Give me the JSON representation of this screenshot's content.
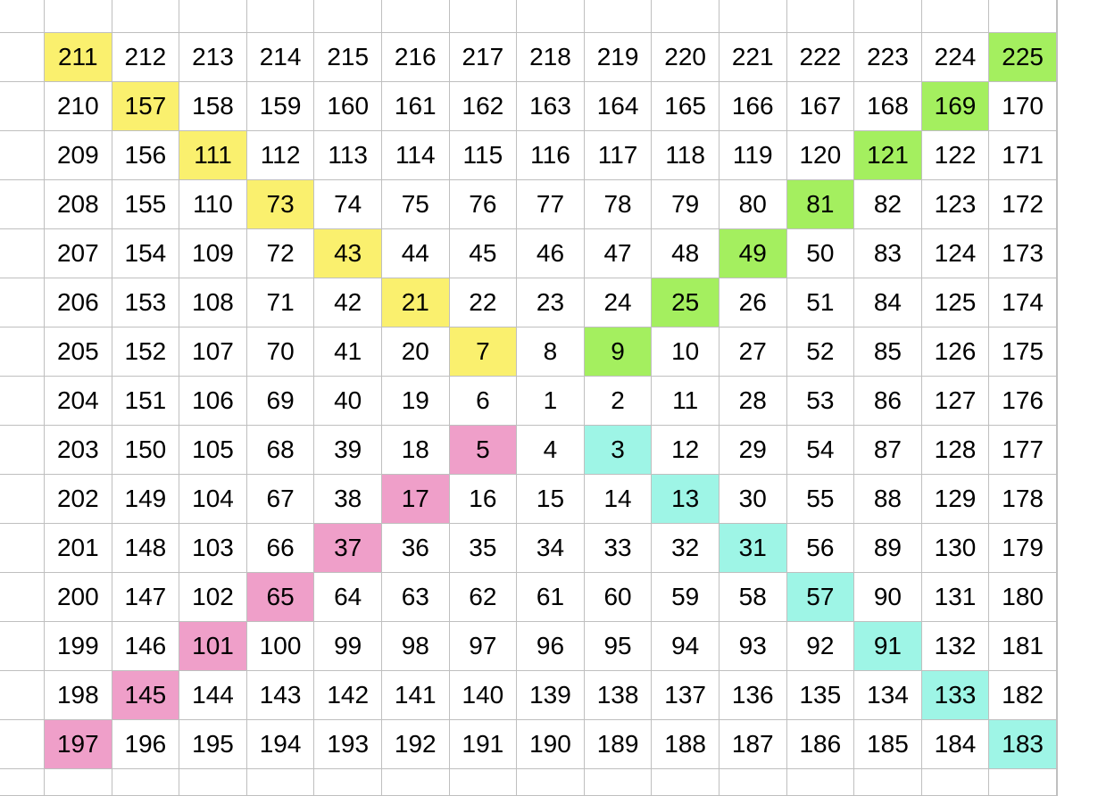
{
  "colors": {
    "yellow": "#faf06e",
    "green": "#a4ef5f",
    "pink": "#ef9fc9",
    "cyan": "#9ef5e6",
    "gridline": "#bfbfbf"
  },
  "grid": {
    "rows": [
      [
        211,
        212,
        213,
        214,
        215,
        216,
        217,
        218,
        219,
        220,
        221,
        222,
        223,
        224,
        225
      ],
      [
        210,
        157,
        158,
        159,
        160,
        161,
        162,
        163,
        164,
        165,
        166,
        167,
        168,
        169,
        170
      ],
      [
        209,
        156,
        111,
        112,
        113,
        114,
        115,
        116,
        117,
        118,
        119,
        120,
        121,
        122,
        171
      ],
      [
        208,
        155,
        110,
        73,
        74,
        75,
        76,
        77,
        78,
        79,
        80,
        81,
        82,
        123,
        172
      ],
      [
        207,
        154,
        109,
        72,
        43,
        44,
        45,
        46,
        47,
        48,
        49,
        50,
        83,
        124,
        173
      ],
      [
        206,
        153,
        108,
        71,
        42,
        21,
        22,
        23,
        24,
        25,
        26,
        51,
        84,
        125,
        174
      ],
      [
        205,
        152,
        107,
        70,
        41,
        20,
        7,
        8,
        9,
        10,
        27,
        52,
        85,
        126,
        175
      ],
      [
        204,
        151,
        106,
        69,
        40,
        19,
        6,
        1,
        2,
        11,
        28,
        53,
        86,
        127,
        176
      ],
      [
        203,
        150,
        105,
        68,
        39,
        18,
        5,
        4,
        3,
        12,
        29,
        54,
        87,
        128,
        177
      ],
      [
        202,
        149,
        104,
        67,
        38,
        17,
        16,
        15,
        14,
        13,
        30,
        55,
        88,
        129,
        178
      ],
      [
        201,
        148,
        103,
        66,
        37,
        36,
        35,
        34,
        33,
        32,
        31,
        56,
        89,
        130,
        179
      ],
      [
        200,
        147,
        102,
        65,
        64,
        63,
        62,
        61,
        60,
        59,
        58,
        57,
        90,
        131,
        180
      ],
      [
        199,
        146,
        101,
        100,
        99,
        98,
        97,
        96,
        95,
        94,
        93,
        92,
        91,
        132,
        181
      ],
      [
        198,
        145,
        144,
        143,
        142,
        141,
        140,
        139,
        138,
        137,
        136,
        135,
        134,
        133,
        182
      ],
      [
        197,
        196,
        195,
        194,
        193,
        192,
        191,
        190,
        189,
        188,
        187,
        186,
        185,
        184,
        183
      ]
    ],
    "highlights": {
      "yellow": [
        211,
        157,
        111,
        73,
        43,
        21,
        7
      ],
      "green": [
        225,
        169,
        121,
        81,
        49,
        25,
        9
      ],
      "pink": [
        197,
        145,
        101,
        65,
        37,
        17,
        5
      ],
      "cyan": [
        183,
        133,
        91,
        57,
        31,
        13,
        3
      ]
    }
  }
}
